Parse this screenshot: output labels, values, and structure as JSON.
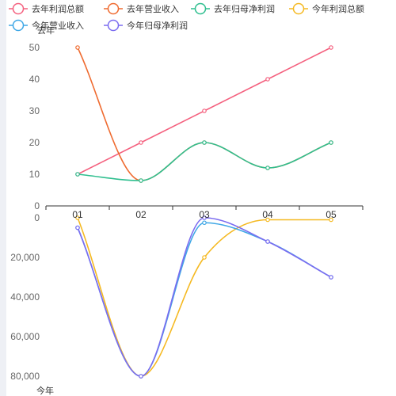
{
  "colors": {
    "profit_last": "#f4617f",
    "revenue_last": "#ef6b30",
    "netprofit_last": "#2fbf8f",
    "profit_this": "#f5b921",
    "revenue_this": "#3fa7e6",
    "netprofit_this": "#7b6cf0",
    "axis": "#333333",
    "tick": "#666666"
  },
  "chart_data": [
    {
      "type": "line",
      "panel": "top",
      "ylabel": "去年",
      "ylim": [
        0,
        50
      ],
      "yticks": [
        "0",
        "10",
        "20",
        "30",
        "40",
        "50"
      ],
      "categories": [
        "01",
        "02",
        "03",
        "04",
        "05"
      ],
      "smooth": true,
      "series": [
        {
          "name": "去年利润总额",
          "color_key": "profit_last",
          "smooth": false,
          "values": [
            10,
            20,
            30,
            40,
            50
          ]
        },
        {
          "name": "去年营业收入",
          "color_key": "revenue_last",
          "smooth": true,
          "values": [
            50,
            8,
            20,
            12,
            20
          ]
        },
        {
          "name": "去年归母净利润",
          "color_key": "netprofit_last",
          "smooth": true,
          "values": [
            10,
            8,
            20,
            12,
            20
          ]
        }
      ]
    },
    {
      "type": "line",
      "panel": "bottom",
      "ylabel": "今年",
      "ylim": [
        0,
        80000
      ],
      "inverted": true,
      "yticks": [
        "0",
        "20,000",
        "40,000",
        "60,000",
        "80,000"
      ],
      "categories": [
        "01",
        "02",
        "03",
        "04",
        "05"
      ],
      "smooth": true,
      "series": [
        {
          "name": "今年利润总额",
          "color_key": "profit_this",
          "values": [
            0,
            80000,
            20000,
            1000,
            1000
          ]
        },
        {
          "name": "今年营业收入",
          "color_key": "revenue_this",
          "values": [
            5000,
            80000,
            2500,
            12000,
            30000
          ]
        },
        {
          "name": "今年归母净利润",
          "color_key": "netprofit_this",
          "values": [
            5000,
            80000,
            0,
            12000,
            30000
          ]
        }
      ]
    }
  ]
}
